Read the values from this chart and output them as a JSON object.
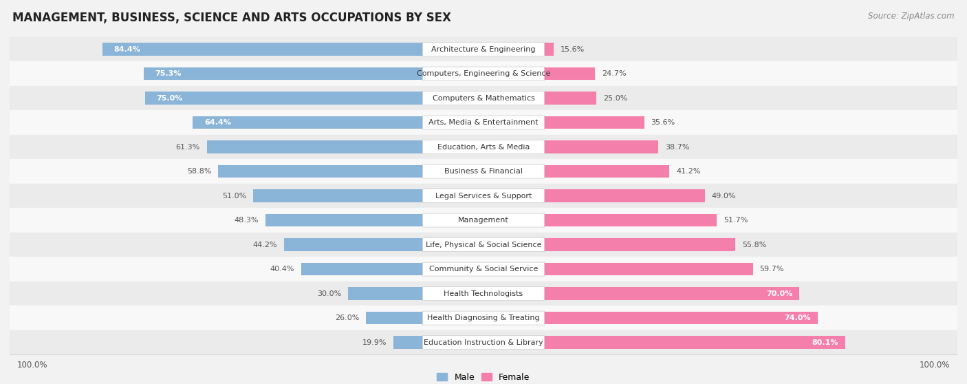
{
  "title": "MANAGEMENT, BUSINESS, SCIENCE AND ARTS OCCUPATIONS BY SEX",
  "source": "Source: ZipAtlas.com",
  "categories": [
    "Architecture & Engineering",
    "Computers, Engineering & Science",
    "Computers & Mathematics",
    "Arts, Media & Entertainment",
    "Education, Arts & Media",
    "Business & Financial",
    "Legal Services & Support",
    "Management",
    "Life, Physical & Social Science",
    "Community & Social Service",
    "Health Technologists",
    "Health Diagnosing & Treating",
    "Education Instruction & Library"
  ],
  "male_pct": [
    84.4,
    75.3,
    75.0,
    64.4,
    61.3,
    58.8,
    51.0,
    48.3,
    44.2,
    40.4,
    30.0,
    26.0,
    19.9
  ],
  "female_pct": [
    15.6,
    24.7,
    25.0,
    35.6,
    38.7,
    41.2,
    49.0,
    51.7,
    55.8,
    59.7,
    70.0,
    74.0,
    80.1
  ],
  "male_color": "#8ab4d8",
  "female_color": "#f47faa",
  "male_label": "Male",
  "female_label": "Female",
  "bar_height": 0.52,
  "row_colors": [
    "#ebebeb",
    "#f8f8f8"
  ],
  "background_color": "#f2f2f2",
  "title_fontsize": 12,
  "source_fontsize": 8.5,
  "cat_label_fontsize": 8,
  "bar_label_fontsize": 8,
  "male_inside_threshold": 62.0,
  "female_inside_threshold": 68.0,
  "xlim": 105
}
